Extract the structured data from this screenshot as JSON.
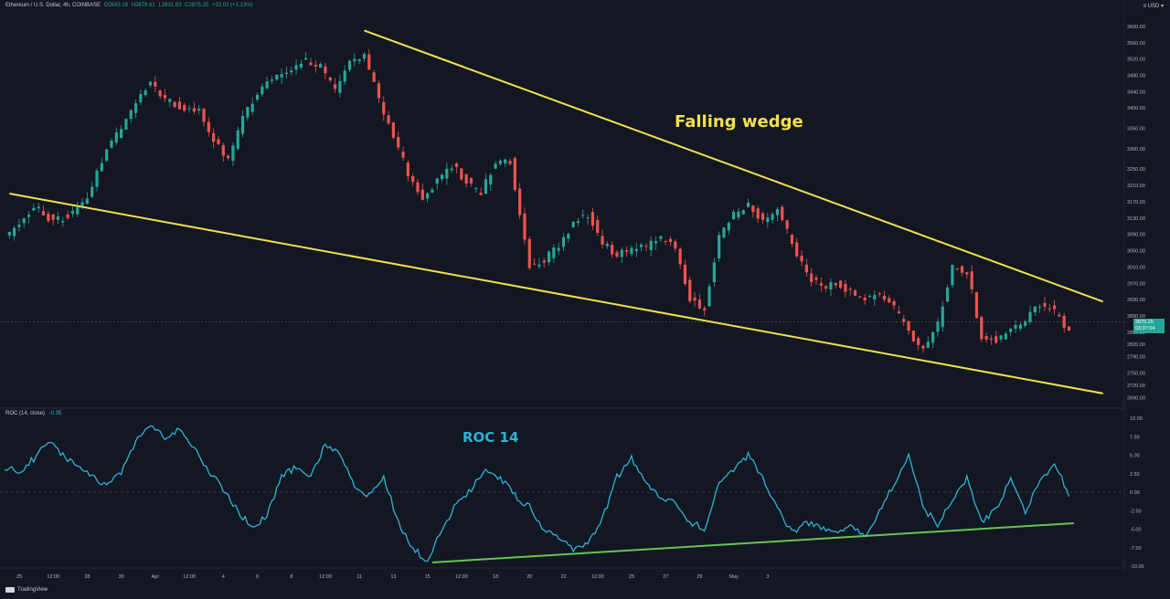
{
  "header": {
    "symbol": "Ethereum / U.S. Dollar, 4h, COINBASE",
    "open": "O2843.16",
    "high": "H2878.61",
    "low": "L2831.83",
    "close": "C2875.25",
    "change": "+32.02 (+1.13%)",
    "currency": "≡ USD ▾"
  },
  "indicator": {
    "title": "ROC (14, close)",
    "value": "-0.35"
  },
  "brand": "TradingView",
  "price_tag": {
    "price": "2875.25",
    "countdown": "03:37:04"
  },
  "chart_data": [
    {
      "type": "candlestick",
      "title": "",
      "annotation": "Falling wedge",
      "ylim": [
        2675,
        3620
      ],
      "y_ticks": [
        3600,
        3560,
        3520,
        3480,
        3440,
        3400,
        3350,
        3300,
        3250,
        3210,
        3170,
        3130,
        3090,
        3050,
        3010,
        2970,
        2930,
        2890,
        2850,
        2820,
        2790,
        2750,
        2720,
        2690
      ],
      "y_tick_labels": [
        "3600.00",
        "3560.00",
        "3520.00",
        "3480.00",
        "3440.00",
        "3400.00",
        "3350.00",
        "3300.00",
        "3250.00",
        "3210.00",
        "3170.00",
        "3130.00",
        "3090.00",
        "3050.00",
        "3010.00",
        "2970.00",
        "2930.00",
        "2890.00",
        "2850.00",
        "2820.00",
        "2790.00",
        "2750.00",
        "2720.00",
        "2690.00"
      ],
      "x_labels": [
        "25",
        "12:00",
        "28",
        "30",
        "Apr",
        "12:00",
        "4",
        "6",
        "8",
        "12:00",
        "11",
        "13",
        "15",
        "12:00",
        "18",
        "20",
        "22",
        "12:00",
        "25",
        "27",
        "29",
        "May",
        "3"
      ],
      "current_price": 2875.25,
      "close_path": [
        [
          0,
          3080
        ],
        [
          3,
          3120
        ],
        [
          6,
          3160
        ],
        [
          10,
          3120
        ],
        [
          14,
          3140
        ],
        [
          17,
          3180
        ],
        [
          21,
          3300
        ],
        [
          24,
          3350
        ],
        [
          27,
          3420
        ],
        [
          30,
          3460
        ],
        [
          33,
          3420
        ],
        [
          36,
          3400
        ],
        [
          40,
          3390
        ],
        [
          43,
          3320
        ],
        [
          46,
          3270
        ],
        [
          49,
          3380
        ],
        [
          53,
          3450
        ],
        [
          56,
          3480
        ],
        [
          59,
          3500
        ],
        [
          62,
          3520
        ],
        [
          65,
          3500
        ],
        [
          68,
          3440
        ],
        [
          71,
          3520
        ],
        [
          74,
          3530
        ],
        [
          77,
          3420
        ],
        [
          80,
          3330
        ],
        [
          83,
          3240
        ],
        [
          86,
          3180
        ],
        [
          89,
          3220
        ],
        [
          92,
          3260
        ],
        [
          95,
          3220
        ],
        [
          98,
          3190
        ],
        [
          101,
          3270
        ],
        [
          104,
          3270
        ],
        [
          108,
          3010
        ],
        [
          111,
          3030
        ],
        [
          114,
          3060
        ],
        [
          117,
          3120
        ],
        [
          120,
          3140
        ],
        [
          123,
          3070
        ],
        [
          126,
          3040
        ],
        [
          129,
          3050
        ],
        [
          132,
          3060
        ],
        [
          135,
          3080
        ],
        [
          138,
          3060
        ],
        [
          141,
          2930
        ],
        [
          144,
          2910
        ],
        [
          147,
          3080
        ],
        [
          150,
          3140
        ],
        [
          153,
          3160
        ],
        [
          156,
          3120
        ],
        [
          159,
          3150
        ],
        [
          162,
          3070
        ],
        [
          165,
          2990
        ],
        [
          168,
          2960
        ],
        [
          171,
          2970
        ],
        [
          174,
          2950
        ],
        [
          177,
          2930
        ],
        [
          180,
          2940
        ],
        [
          183,
          2910
        ],
        [
          186,
          2850
        ],
        [
          189,
          2810
        ],
        [
          192,
          2870
        ],
        [
          195,
          3010
        ],
        [
          198,
          3000
        ],
        [
          201,
          2840
        ],
        [
          204,
          2830
        ],
        [
          207,
          2850
        ],
        [
          210,
          2880
        ],
        [
          213,
          2920
        ],
        [
          216,
          2900
        ],
        [
          219,
          2850
        ]
      ],
      "trendlines": [
        {
          "name": "upper",
          "from": [
            74,
            3590
          ],
          "to": [
            226,
            2925
          ]
        },
        {
          "name": "lower",
          "from": [
            1,
            3190
          ],
          "to": [
            226,
            2700
          ]
        }
      ],
      "x_ticks_index": [
        0,
        7,
        14,
        21,
        28,
        35,
        42,
        49,
        56,
        63,
        70,
        77,
        84,
        91,
        98,
        105,
        112,
        119,
        126,
        133,
        140,
        147,
        154
      ],
      "x_range": [
        0,
        230
      ]
    },
    {
      "type": "line",
      "title": "",
      "annotation": "ROC 14",
      "ylim": [
        -10,
        10
      ],
      "y_ticks": [
        10,
        7.5,
        5,
        2.5,
        0,
        -2.5,
        -5,
        -7.5,
        -10
      ],
      "y_tick_labels": [
        "10.00",
        "7.50",
        "5.00",
        "2.50",
        "0.00",
        "-2.50",
        "-5.00",
        "-7.50",
        "-10.00"
      ],
      "series": [
        {
          "values": [
            [
              0,
              3.5
            ],
            [
              3,
              2.8
            ],
            [
              6,
              4.5
            ],
            [
              9,
              7.0
            ],
            [
              12,
              5.0
            ],
            [
              15,
              3.5
            ],
            [
              18,
              2.0
            ],
            [
              21,
              1.0
            ],
            [
              24,
              2.5
            ],
            [
              27,
              7.0
            ],
            [
              30,
              9.0
            ],
            [
              33,
              7.5
            ],
            [
              36,
              8.5
            ],
            [
              39,
              6.0
            ],
            [
              42,
              3.0
            ],
            [
              45,
              0.5
            ],
            [
              48,
              -2.5
            ],
            [
              51,
              -5.0
            ],
            [
              54,
              -3.0
            ],
            [
              57,
              2.0
            ],
            [
              60,
              3.5
            ],
            [
              63,
              2.0
            ],
            [
              66,
              6.5
            ],
            [
              69,
              5.5
            ],
            [
              72,
              1.0
            ],
            [
              75,
              -0.5
            ],
            [
              78,
              2.0
            ],
            [
              81,
              -4.0
            ],
            [
              84,
              -7.5
            ],
            [
              87,
              -9.5
            ],
            [
              90,
              -5.0
            ],
            [
              93,
              -1.5
            ],
            [
              96,
              0.5
            ],
            [
              99,
              3.0
            ],
            [
              102,
              2.0
            ],
            [
              105,
              -0.5
            ],
            [
              108,
              -2.0
            ],
            [
              111,
              -5.0
            ],
            [
              114,
              -6.0
            ],
            [
              117,
              -8.0
            ],
            [
              120,
              -7.0
            ],
            [
              123,
              -3.5
            ],
            [
              126,
              2.0
            ],
            [
              129,
              4.5
            ],
            [
              132,
              1.0
            ],
            [
              135,
              -0.5
            ],
            [
              138,
              -1.5
            ],
            [
              141,
              -4.0
            ],
            [
              144,
              -5.0
            ],
            [
              147,
              1.0
            ],
            [
              150,
              3.0
            ],
            [
              153,
              5.0
            ],
            [
              156,
              2.0
            ],
            [
              159,
              -2.0
            ],
            [
              162,
              -5.5
            ],
            [
              165,
              -4.0
            ],
            [
              168,
              -5.0
            ],
            [
              171,
              -5.5
            ],
            [
              174,
              -4.5
            ],
            [
              177,
              -6.0
            ],
            [
              180,
              -2.5
            ],
            [
              183,
              1.0
            ],
            [
              186,
              5.0
            ],
            [
              189,
              -2.0
            ],
            [
              192,
              -4.5
            ],
            [
              195,
              -1.0
            ],
            [
              198,
              2.0
            ],
            [
              201,
              -4.0
            ],
            [
              204,
              -2.5
            ],
            [
              207,
              2.0
            ],
            [
              210,
              -3.0
            ],
            [
              213,
              1.5
            ],
            [
              216,
              4.0
            ],
            [
              219,
              -0.5
            ]
          ]
        }
      ],
      "trendlines": [
        {
          "name": "support",
          "from": [
            88,
            -9.5
          ],
          "to": [
            220,
            -4.2
          ]
        }
      ],
      "zero_line": 0
    }
  ],
  "colors": {
    "background": "#131722",
    "up": "#26a69a",
    "down": "#ef5350",
    "wedge": "#f4e04d",
    "roc": "#2bb4d6",
    "support": "#66c457"
  }
}
